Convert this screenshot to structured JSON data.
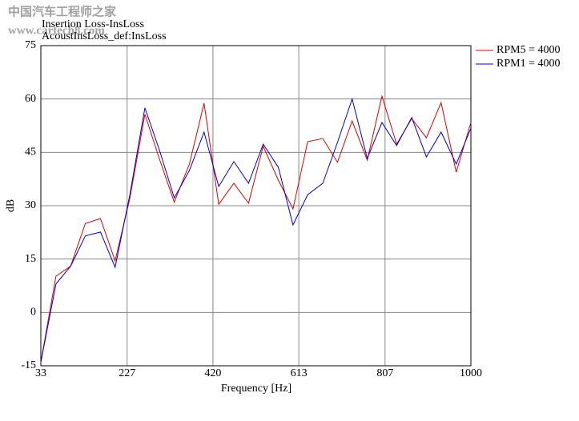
{
  "watermark": [
    "中国汽车工程师之家",
    "www.cartech8.com"
  ],
  "chart_data": {
    "type": "line",
    "title": "Insertion Loss-InsLoss",
    "subtitle": "AcoustInsLoss_def:InsLoss",
    "xlabel": "Frequency [Hz]",
    "ylabel": "dB",
    "x": [
      33,
      67,
      100,
      133,
      167,
      200,
      233,
      267,
      300,
      333,
      367,
      400,
      433,
      467,
      500,
      533,
      567,
      600,
      633,
      667,
      700,
      733,
      767,
      800,
      833,
      867,
      900,
      933,
      967,
      1000
    ],
    "series": [
      {
        "name": "RPM5 = 4000",
        "color": "#e00000",
        "values": [
          -14,
          10.2,
          13,
          25,
          26.4,
          14.5,
          32,
          55.7,
          43,
          31,
          41.7,
          58.8,
          30.4,
          36.3,
          30.7,
          46.7,
          37.2,
          29.1,
          48,
          48.9,
          42.2,
          53.8,
          42.8,
          60.8,
          47.3,
          54.5,
          49.1,
          59,
          39.4,
          53.4
        ]
      },
      {
        "name": "RPM1 = 4000",
        "color": "#0000d0",
        "values": [
          -14,
          8,
          13,
          21.5,
          22.6,
          12.7,
          33,
          57.5,
          45.5,
          32.2,
          39.9,
          50.7,
          35.4,
          42.4,
          36.3,
          47.3,
          40.8,
          24.6,
          33.1,
          36.3,
          47.8,
          60,
          43.3,
          53.4,
          46.9,
          54.8,
          43.7,
          50.7,
          41.7,
          51.8
        ]
      }
    ],
    "xlim": [
      33,
      1000
    ],
    "xticks": [
      33,
      227,
      420,
      613,
      807,
      1000
    ],
    "ylim": [
      -15,
      75
    ],
    "yticks": [
      -15,
      0,
      15,
      30,
      45,
      60,
      75
    ],
    "grid": true,
    "legend": "right"
  }
}
